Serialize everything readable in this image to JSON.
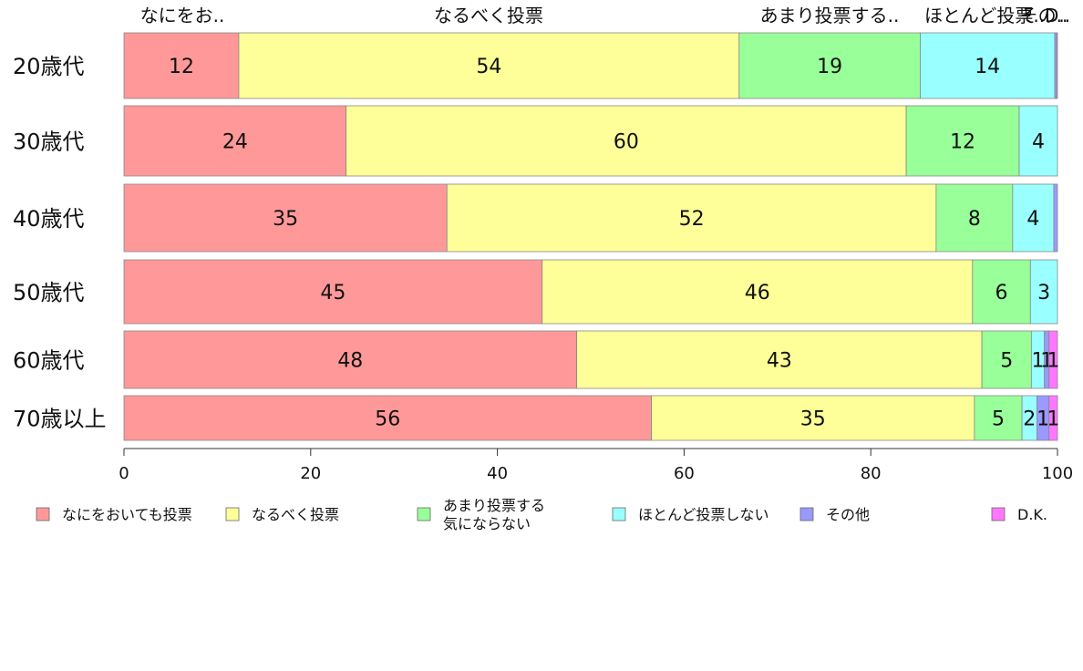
{
  "chart_data": {
    "type": "bar",
    "orientation": "horizontal",
    "stacked": true,
    "top_labels": [
      "なにをお..",
      "なるべく投票",
      "あまり投票する..",
      "ほとんど投票..",
      "その..",
      "D.."
    ],
    "categories": [
      "20歳代",
      "30歳代",
      "40歳代",
      "50歳代",
      "60歳代",
      "70歳以上"
    ],
    "series": [
      {
        "name": "なにをおいても投票",
        "label_lines": [
          "なにをおいても投票"
        ],
        "color": "#ff9999",
        "values": [
          12.3,
          23.8,
          34.6,
          44.8,
          48.5,
          56.5
        ],
        "labels": [
          "12",
          "24",
          "35",
          "45",
          "48",
          "56"
        ]
      },
      {
        "name": "なるべく投票",
        "label_lines": [
          "なるべく投票"
        ],
        "color": "#ffff99",
        "values": [
          53.6,
          60.0,
          52.4,
          46.1,
          43.4,
          34.6
        ],
        "labels": [
          "54",
          "60",
          "52",
          "46",
          "43",
          "35"
        ]
      },
      {
        "name": "あまり投票する気にならない",
        "label_lines": [
          "あまり投票する",
          "気にならない"
        ],
        "color": "#99ff99",
        "values": [
          19.4,
          12.1,
          8.2,
          6.2,
          5.3,
          5.1
        ],
        "labels": [
          "19",
          "12",
          "8",
          "6",
          "5",
          "5"
        ]
      },
      {
        "name": "ほとんど投票しない",
        "label_lines": [
          "ほとんど投票しない"
        ],
        "color": "#99ffff",
        "values": [
          14.4,
          4.1,
          4.4,
          2.9,
          1.4,
          1.6
        ],
        "labels": [
          "14",
          "4",
          "4",
          "3",
          "1",
          "2"
        ]
      },
      {
        "name": "その他",
        "label_lines": [
          "その他"
        ],
        "color": "#9999ff",
        "values": [
          0.2,
          0.0,
          0.4,
          0.0,
          0.5,
          1.3
        ],
        "labels": [
          "",
          "",
          "",
          "",
          "1",
          "1"
        ]
      },
      {
        "name": "D.K.",
        "label_lines": [
          "D.K."
        ],
        "color": "#ff77ff",
        "values": [
          0.1,
          0.0,
          0.0,
          0.0,
          0.9,
          0.9
        ],
        "labels": [
          "",
          "",
          "",
          "",
          "1",
          "1"
        ]
      }
    ],
    "xlim": [
      0,
      100
    ],
    "xticks": [
      0,
      20,
      40,
      60,
      80,
      100
    ],
    "grid": false,
    "legend_position": "bottom"
  }
}
